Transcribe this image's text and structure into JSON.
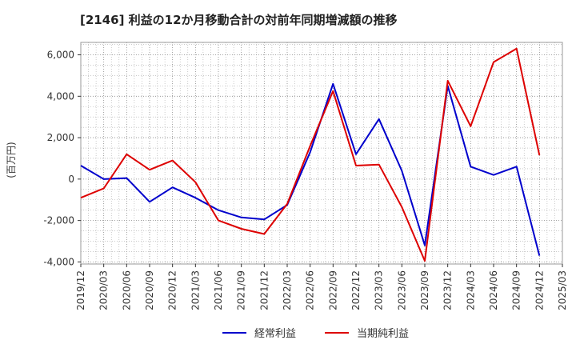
{
  "chart_data": {
    "type": "line",
    "title": "[2146]  利益の12か月移動合計の対前年同期増減額の推移",
    "ylabel": "(百万円)",
    "xlabel": "",
    "ylim": [
      -4100,
      6600
    ],
    "yticks": [
      -4000,
      -2000,
      0,
      2000,
      4000,
      6000
    ],
    "ytick_labels": [
      "-4,000",
      "-2,000",
      "0",
      "2,000",
      "4,000",
      "6,000"
    ],
    "categories": [
      "2019/12",
      "2020/03",
      "2020/06",
      "2020/09",
      "2020/12",
      "2021/03",
      "2021/06",
      "2021/09",
      "2021/12",
      "2022/03",
      "2022/06",
      "2022/09",
      "2022/12",
      "2023/03",
      "2023/06",
      "2023/09",
      "2023/12",
      "2024/03",
      "2024/06",
      "2024/09",
      "2024/12",
      "2025/03"
    ],
    "series": [
      {
        "name": "経常利益",
        "color": "#0000cc",
        "values": [
          650,
          0,
          50,
          -1100,
          -400,
          -900,
          -1500,
          -1850,
          -1950,
          -1250,
          1300,
          4600,
          1200,
          2900,
          400,
          -3200,
          4500,
          600,
          200,
          600,
          -3700,
          null
        ]
      },
      {
        "name": "当期純利益",
        "color": "#dd0000",
        "values": [
          -900,
          -450,
          1200,
          450,
          900,
          -150,
          -2000,
          -2400,
          -2650,
          -1200,
          1600,
          4250,
          650,
          700,
          -1350,
          -3950,
          4750,
          2550,
          5650,
          6300,
          1150,
          null
        ]
      }
    ],
    "grid": true,
    "legend_position": "bottom-center"
  }
}
